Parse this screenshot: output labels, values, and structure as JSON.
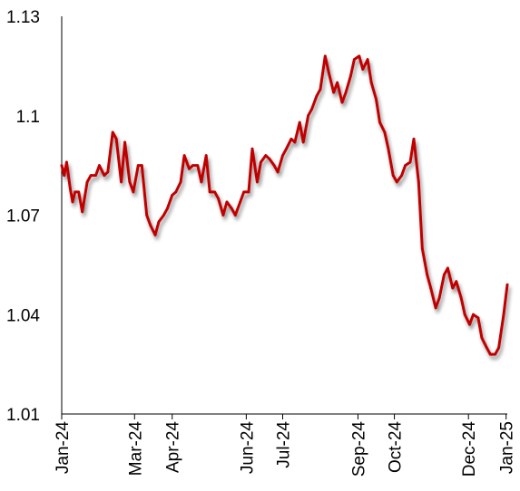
{
  "chart_data": {
    "type": "line",
    "title": "",
    "xlabel": "",
    "ylabel": "",
    "ylim": [
      1.01,
      1.13
    ],
    "y_ticks": [
      1.01,
      1.04,
      1.07,
      1.1,
      1.13
    ],
    "y_tick_labels": [
      "1.01",
      "1.04",
      "1.07",
      "1.1",
      "1.13"
    ],
    "x_range": [
      "2024-01-01",
      "2025-01-02"
    ],
    "x_ticks": [
      "2024-01-01",
      "2024-03-01",
      "2024-04-01",
      "2024-06-01",
      "2024-07-01",
      "2024-09-01",
      "2024-10-01",
      "2024-12-01",
      "2025-01-01"
    ],
    "x_tick_labels": [
      "Jan-24",
      "Mar-24",
      "Apr-24",
      "Jun-24",
      "Jul-24",
      "Sep-24",
      "Oct-24",
      "Dec-24",
      "Jan-25"
    ],
    "grid": false,
    "legend": "none",
    "line_color": "#c00000",
    "series": [
      {
        "x": [
          "2024-01-01",
          "2024-01-03",
          "2024-01-05",
          "2024-01-08",
          "2024-01-10",
          "2024-01-12",
          "2024-01-15",
          "2024-01-18",
          "2024-01-22",
          "2024-01-25",
          "2024-01-29",
          "2024-02-01",
          "2024-02-05",
          "2024-02-08",
          "2024-02-12",
          "2024-02-15",
          "2024-02-19",
          "2024-02-22",
          "2024-02-26",
          "2024-02-29",
          "2024-03-04",
          "2024-03-07",
          "2024-03-11",
          "2024-03-14",
          "2024-03-18",
          "2024-03-21",
          "2024-03-25",
          "2024-03-28",
          "2024-04-01",
          "2024-04-04",
          "2024-04-08",
          "2024-04-11",
          "2024-04-15",
          "2024-04-18",
          "2024-04-22",
          "2024-04-25",
          "2024-04-29",
          "2024-05-02",
          "2024-05-06",
          "2024-05-09",
          "2024-05-13",
          "2024-05-16",
          "2024-05-20",
          "2024-05-23",
          "2024-05-27",
          "2024-05-30",
          "2024-06-03",
          "2024-06-06",
          "2024-06-10",
          "2024-06-13",
          "2024-06-17",
          "2024-06-20",
          "2024-06-24",
          "2024-06-27",
          "2024-07-01",
          "2024-07-04",
          "2024-07-08",
          "2024-07-11",
          "2024-07-15",
          "2024-07-18",
          "2024-07-22",
          "2024-07-25",
          "2024-07-29",
          "2024-08-01",
          "2024-08-05",
          "2024-08-08",
          "2024-08-12",
          "2024-08-15",
          "2024-08-19",
          "2024-08-22",
          "2024-08-26",
          "2024-08-29",
          "2024-09-02",
          "2024-09-05",
          "2024-09-09",
          "2024-09-12",
          "2024-09-16",
          "2024-09-19",
          "2024-09-23",
          "2024-09-26",
          "2024-09-30",
          "2024-10-03",
          "2024-10-07",
          "2024-10-10",
          "2024-10-14",
          "2024-10-17",
          "2024-10-21",
          "2024-10-24",
          "2024-10-28",
          "2024-10-31",
          "2024-11-04",
          "2024-11-07",
          "2024-11-11",
          "2024-11-14",
          "2024-11-18",
          "2024-11-21",
          "2024-11-25",
          "2024-11-28",
          "2024-12-02",
          "2024-12-05",
          "2024-12-09",
          "2024-12-12",
          "2024-12-16",
          "2024-12-19",
          "2024-12-23",
          "2024-12-26",
          "2024-12-30",
          "2025-01-02"
        ],
        "y": [
          1.085,
          1.082,
          1.086,
          1.078,
          1.074,
          1.077,
          1.077,
          1.071,
          1.08,
          1.082,
          1.082,
          1.085,
          1.082,
          1.083,
          1.095,
          1.093,
          1.08,
          1.092,
          1.08,
          1.077,
          1.085,
          1.085,
          1.07,
          1.067,
          1.064,
          1.068,
          1.07,
          1.072,
          1.076,
          1.077,
          1.08,
          1.088,
          1.084,
          1.085,
          1.085,
          1.08,
          1.088,
          1.077,
          1.077,
          1.075,
          1.07,
          1.074,
          1.072,
          1.07,
          1.074,
          1.077,
          1.077,
          1.09,
          1.08,
          1.086,
          1.088,
          1.087,
          1.085,
          1.083,
          1.088,
          1.09,
          1.093,
          1.092,
          1.098,
          1.092,
          1.1,
          1.102,
          1.106,
          1.108,
          1.118,
          1.113,
          1.107,
          1.11,
          1.104,
          1.107,
          1.112,
          1.117,
          1.118,
          1.114,
          1.117,
          1.11,
          1.105,
          1.098,
          1.095,
          1.09,
          1.082,
          1.08,
          1.082,
          1.085,
          1.086,
          1.093,
          1.08,
          1.06,
          1.052,
          1.048,
          1.042,
          1.045,
          1.052,
          1.054,
          1.048,
          1.05,
          1.045,
          1.04,
          1.037,
          1.04,
          1.039,
          1.033,
          1.03,
          1.028,
          1.028,
          1.03,
          1.04,
          1.049
        ]
      }
    ]
  }
}
